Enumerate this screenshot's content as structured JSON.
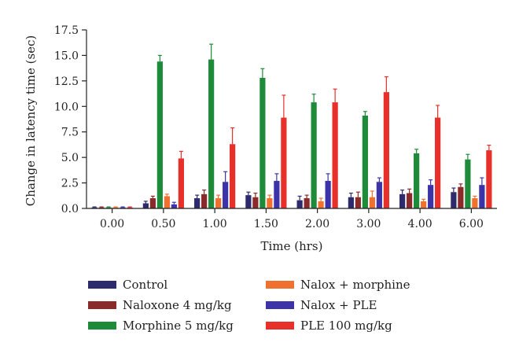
{
  "chart_data": {
    "type": "bar",
    "title": "",
    "xlabel": "Time (hrs)",
    "ylabel": "Change in latency time (sec)",
    "ylim": [
      0,
      17.5
    ],
    "yticks": [
      "0.0",
      "2.5",
      "5.0",
      "7.5",
      "10.0",
      "12.5",
      "15.0",
      "17.5"
    ],
    "categories": [
      "0.00",
      "0.50",
      "1.00",
      "1.50",
      "2.00",
      "3.00",
      "4.00",
      "6.00"
    ],
    "grid": false,
    "legend_position": "bottom",
    "series": [
      {
        "name": "Control",
        "color": "#2e2a6e",
        "values": [
          0.1,
          0.5,
          1.0,
          1.3,
          0.8,
          1.1,
          1.4,
          1.6
        ],
        "errors": [
          0.05,
          0.2,
          0.3,
          0.3,
          0.4,
          0.4,
          0.4,
          0.4
        ]
      },
      {
        "name": "Naloxone 4 mg/kg",
        "color": "#8b2a2a",
        "values": [
          0.1,
          1.0,
          1.4,
          1.1,
          1.0,
          1.1,
          1.5,
          2.1
        ],
        "errors": [
          0.05,
          0.2,
          0.4,
          0.4,
          0.3,
          0.5,
          0.4,
          0.3
        ]
      },
      {
        "name": "Morphine 5 mg/kg",
        "color": "#1e8b3a",
        "values": [
          0.1,
          14.4,
          14.6,
          12.8,
          10.4,
          9.1,
          5.4,
          4.8
        ],
        "errors": [
          0.05,
          0.6,
          1.5,
          0.9,
          0.8,
          0.4,
          0.4,
          0.5
        ]
      },
      {
        "name": "Nalox + morphine",
        "color": "#f07030",
        "values": [
          0.1,
          1.2,
          1.0,
          1.0,
          0.7,
          1.1,
          0.7,
          1.0
        ],
        "errors": [
          0.05,
          0.2,
          0.3,
          0.3,
          0.3,
          0.6,
          0.2,
          0.2
        ]
      },
      {
        "name": "Nalox + PLE",
        "color": "#3d33a8",
        "values": [
          0.1,
          0.4,
          2.6,
          2.7,
          2.7,
          2.6,
          2.3,
          2.3
        ],
        "errors": [
          0.05,
          0.2,
          1.0,
          0.7,
          0.7,
          0.4,
          0.5,
          0.7
        ]
      },
      {
        "name": "PLE 100 mg/kg",
        "color": "#e8302a",
        "values": [
          0.1,
          4.9,
          6.3,
          8.9,
          10.4,
          11.4,
          8.9,
          5.7
        ],
        "errors": [
          0.05,
          0.7,
          1.6,
          2.2,
          1.3,
          1.5,
          1.2,
          0.5
        ]
      }
    ]
  }
}
